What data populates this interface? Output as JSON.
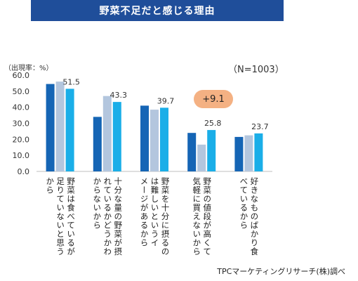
{
  "title": "野菜不足だと感じる理由",
  "y_unit_label": "（出現率：%）",
  "n_label": "（N=1003）",
  "badge": "+9.1",
  "source": "TPCマーケティングリサーチ(株)調べ",
  "colors": {
    "title_bg": "#1f4e9a",
    "badge": "#f4b183",
    "series": [
      "#1565b5",
      "#b3c6de",
      "#1aaee8"
    ]
  },
  "chart_data": {
    "type": "bar",
    "categories": [
      "野菜は食べているが足りていないと思うから",
      "十分な量の野菜が摂れているかどうかわからないから",
      "野菜を十分に摂るのは難しいというイメージがあるから",
      "野菜の値段が高くて気軽に買えないから",
      "好きなものばかり食べているから"
    ],
    "category_lines": [
      [
        "野菜は食べているが",
        "足りていないと思う",
        "から"
      ],
      [
        "十分な量の野菜が摂",
        "れているかどうかわ",
        "からないから"
      ],
      [
        "野菜を十分に摂るの",
        "は難しいというイ",
        "メージがあるから"
      ],
      [
        "野菜の値段が高くて",
        "気軽に買えないから"
      ],
      [
        "好きなものばかり食",
        "べているから"
      ]
    ],
    "series": [
      {
        "values": [
          54.5,
          34.0,
          41.0,
          24.0,
          21.5
        ]
      },
      {
        "values": [
          56.0,
          47.0,
          38.5,
          16.7,
          22.5
        ]
      },
      {
        "values": [
          51.5,
          43.3,
          39.7,
          25.8,
          23.7
        ]
      }
    ],
    "data_labels": [
      "51.5",
      "43.3",
      "39.7",
      "25.8",
      "23.7"
    ],
    "y_ticks": [
      "0.0",
      "10.0",
      "20.0",
      "30.0",
      "40.0",
      "50.0",
      "60.0"
    ],
    "ylim": [
      0,
      60
    ],
    "grid": false
  }
}
